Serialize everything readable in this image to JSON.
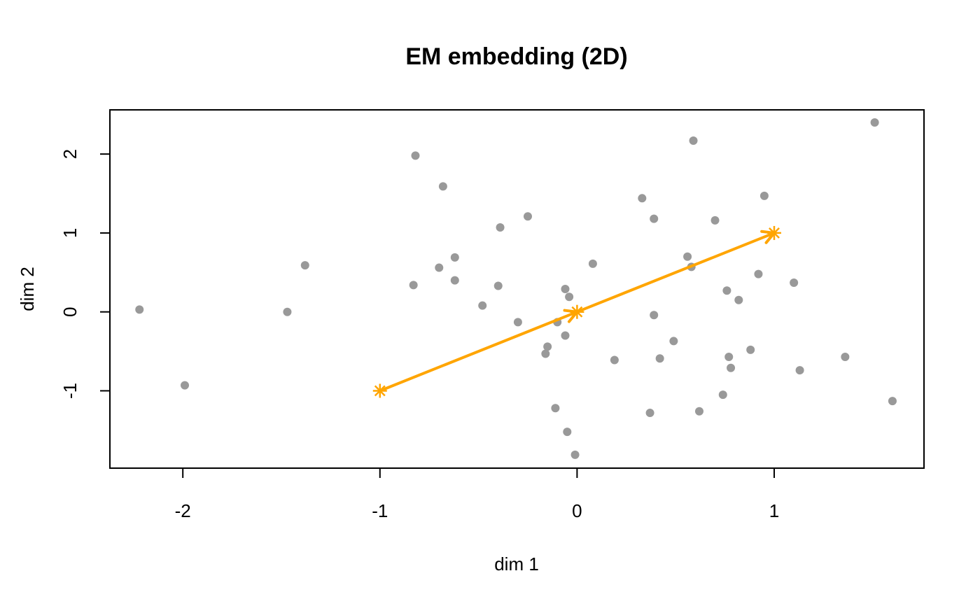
{
  "chart_data": {
    "type": "scatter",
    "title": "EM embedding (2D)",
    "xlabel": "dim 1",
    "ylabel": "dim 2",
    "xlim": [
      -2.37,
      1.76
    ],
    "ylim": [
      -1.98,
      2.56
    ],
    "x_ticks": [
      -2,
      -1,
      0,
      1
    ],
    "x_tick_labels": [
      "-2",
      "-1",
      "0",
      "1"
    ],
    "y_ticks": [
      -1,
      0,
      1,
      2
    ],
    "y_tick_labels": [
      "-1",
      "0",
      "1",
      "2"
    ],
    "grid": false,
    "legend": "none",
    "point_color": "#999999",
    "arrow_color": "#FFA500",
    "points": [
      {
        "x": -2.22,
        "y": 0.03
      },
      {
        "x": -1.99,
        "y": -0.93
      },
      {
        "x": -1.47,
        "y": 0.0
      },
      {
        "x": -1.38,
        "y": 0.59
      },
      {
        "x": -0.83,
        "y": 0.34
      },
      {
        "x": -0.82,
        "y": 1.98
      },
      {
        "x": -0.7,
        "y": 0.56
      },
      {
        "x": -0.68,
        "y": 1.59
      },
      {
        "x": -0.62,
        "y": 0.4
      },
      {
        "x": -0.62,
        "y": 0.69
      },
      {
        "x": -0.48,
        "y": 0.08
      },
      {
        "x": -0.4,
        "y": 0.33
      },
      {
        "x": -0.39,
        "y": 1.07
      },
      {
        "x": -0.3,
        "y": -0.13
      },
      {
        "x": -0.25,
        "y": 1.21
      },
      {
        "x": -0.16,
        "y": -0.53
      },
      {
        "x": -0.15,
        "y": -0.44
      },
      {
        "x": -0.11,
        "y": -1.22
      },
      {
        "x": -0.1,
        "y": -0.13
      },
      {
        "x": -0.06,
        "y": 0.29
      },
      {
        "x": -0.06,
        "y": -0.3
      },
      {
        "x": -0.05,
        "y": -1.52
      },
      {
        "x": -0.04,
        "y": 0.19
      },
      {
        "x": -0.01,
        "y": -1.81
      },
      {
        "x": 0.08,
        "y": 0.61
      },
      {
        "x": 0.19,
        "y": -0.61
      },
      {
        "x": 0.33,
        "y": 1.44
      },
      {
        "x": 0.37,
        "y": -1.28
      },
      {
        "x": 0.39,
        "y": 1.18
      },
      {
        "x": 0.39,
        "y": -0.04
      },
      {
        "x": 0.42,
        "y": -0.59
      },
      {
        "x": 0.49,
        "y": -0.37
      },
      {
        "x": 0.56,
        "y": 0.7
      },
      {
        "x": 0.58,
        "y": 0.57
      },
      {
        "x": 0.59,
        "y": 2.17
      },
      {
        "x": 0.62,
        "y": -1.26
      },
      {
        "x": 0.7,
        "y": 1.16
      },
      {
        "x": 0.74,
        "y": -1.05
      },
      {
        "x": 0.76,
        "y": 0.27
      },
      {
        "x": 0.77,
        "y": -0.57
      },
      {
        "x": 0.78,
        "y": -0.71
      },
      {
        "x": 0.82,
        "y": 0.15
      },
      {
        "x": 0.88,
        "y": -0.48
      },
      {
        "x": 0.92,
        "y": 0.48
      },
      {
        "x": 0.95,
        "y": 1.47
      },
      {
        "x": 1.1,
        "y": 0.37
      },
      {
        "x": 1.13,
        "y": -0.74
      },
      {
        "x": 1.36,
        "y": -0.57
      },
      {
        "x": 1.51,
        "y": 2.4
      },
      {
        "x": 1.6,
        "y": -1.13
      }
    ],
    "arrows": [
      {
        "from": [
          -1,
          -1
        ],
        "to": [
          0,
          0
        ]
      },
      {
        "from": [
          0,
          0
        ],
        "to": [
          1,
          1
        ]
      }
    ],
    "star_markers": [
      {
        "x": -1,
        "y": -1
      },
      {
        "x": 0,
        "y": 0
      },
      {
        "x": 1,
        "y": 1
      }
    ]
  }
}
